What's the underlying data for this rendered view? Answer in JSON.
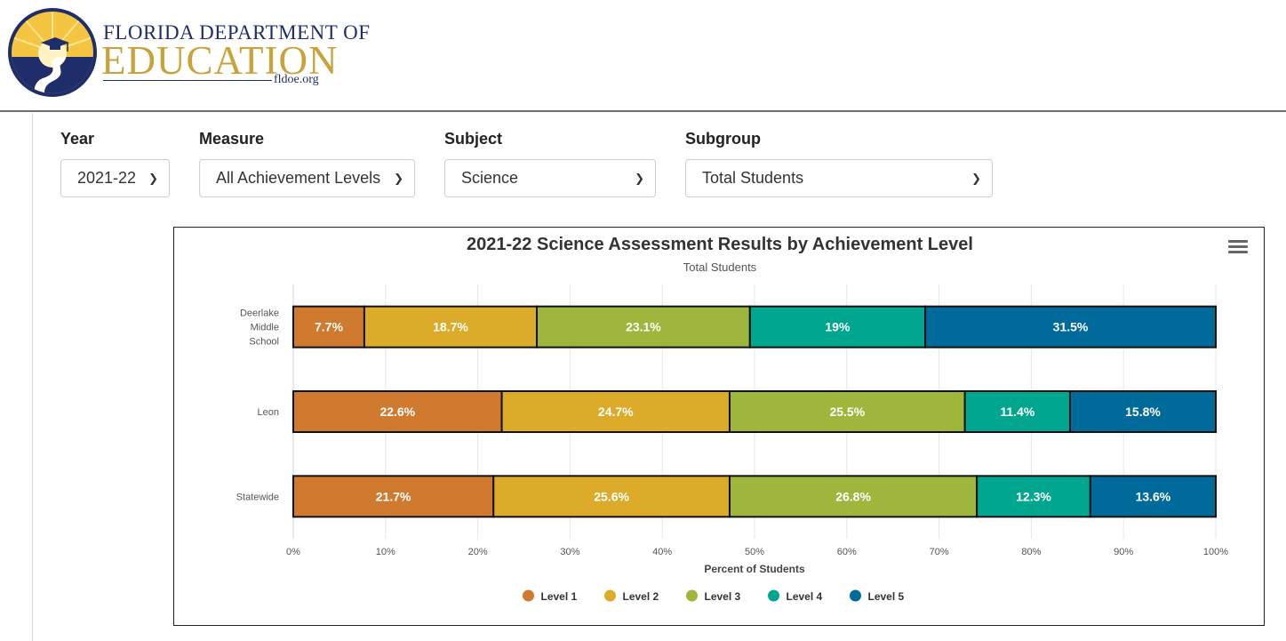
{
  "header": {
    "logo_line1": "FLORIDA DEPARTMENT OF",
    "logo_line2": "EDUCATION",
    "logo_url": "fldoe.org"
  },
  "filters": {
    "year": {
      "label": "Year",
      "value": "2021-22"
    },
    "measure": {
      "label": "Measure",
      "value": "All Achievement Levels"
    },
    "subject": {
      "label": "Subject",
      "value": "Science"
    },
    "subgroup": {
      "label": "Subgroup",
      "value": "Total Students"
    }
  },
  "colors": {
    "level1": "#cf7a2f",
    "level2": "#dcab29",
    "level3": "#9db63b",
    "level4": "#00a78e",
    "level5": "#006a9b"
  },
  "chart_data": {
    "type": "bar",
    "orientation": "horizontal",
    "stacked": true,
    "title": "2021-22 Science Assessment Results by Achievement Level",
    "subtitle": "Total Students",
    "xlabel": "Percent of Students",
    "ylabel": "",
    "xlim": [
      0,
      100
    ],
    "x_ticks": [
      "0%",
      "10%",
      "20%",
      "30%",
      "40%",
      "50%",
      "60%",
      "70%",
      "80%",
      "90%",
      "100%"
    ],
    "categories": [
      "Deerlake Middle School",
      "Leon",
      "Statewide"
    ],
    "series": [
      {
        "name": "Level 1",
        "color": "#cf7a2f",
        "values": [
          7.7,
          22.6,
          21.7
        ]
      },
      {
        "name": "Level 2",
        "color": "#dcab29",
        "values": [
          18.7,
          24.7,
          25.6
        ]
      },
      {
        "name": "Level 3",
        "color": "#9db63b",
        "values": [
          23.1,
          25.5,
          26.8
        ]
      },
      {
        "name": "Level 4",
        "color": "#00a78e",
        "values": [
          19,
          11.4,
          12.3
        ]
      },
      {
        "name": "Level 5",
        "color": "#006a9b",
        "values": [
          31.5,
          15.8,
          13.6
        ]
      }
    ],
    "legend": "bottom-center",
    "grid": true
  }
}
